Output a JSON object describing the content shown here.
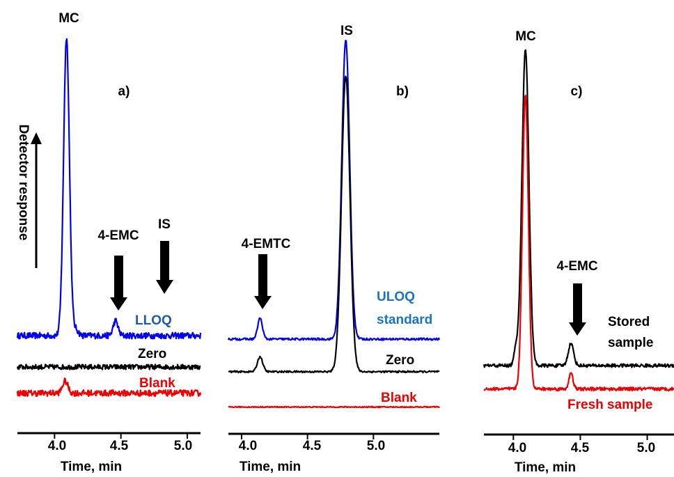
{
  "colors": {
    "blue": "#0000ee",
    "dark_blue": "#1f5aa8",
    "red": "#ee0000",
    "black": "#000000"
  },
  "y_axis_label": "Detector response",
  "chart_data": [
    {
      "type": "line",
      "panel_label": "a)",
      "xlabel": "Time, min",
      "ylabel": "Detector response",
      "xlim": [
        3.72,
        5.1
      ],
      "ticks": [
        "4.0",
        "4.5",
        "5.0"
      ],
      "tick_values": [
        4.0,
        4.5,
        5.0
      ],
      "series": [
        {
          "name": "LLOQ",
          "color": "blue",
          "baseline": 0.0,
          "noise": 0.035,
          "peaks": [
            {
              "x": 4.09,
              "height": 1.0,
              "width": 0.022
            },
            {
              "x": 4.46,
              "height": 0.05,
              "width": 0.018
            },
            {
              "x": 4.16,
              "height": 0.02,
              "width": 0.02
            }
          ]
        },
        {
          "name": "Zero",
          "color": "black",
          "baseline": -0.12,
          "noise": 0.028,
          "peaks": []
        },
        {
          "name": "Blank",
          "color": "red",
          "baseline": -0.22,
          "noise": 0.035,
          "peaks": [
            {
              "x": 4.08,
              "height": 0.04,
              "width": 0.02
            }
          ]
        }
      ],
      "annotations": [
        {
          "text": "MC",
          "x": 4.09,
          "arrow": false
        },
        {
          "text": "4-EMC",
          "x": 4.46,
          "arrow": true
        },
        {
          "text": "IS",
          "x": 4.82,
          "arrow": true
        }
      ]
    },
    {
      "type": "line",
      "panel_label": "b)",
      "xlabel": "Time, min",
      "ylabel": "",
      "xlim": [
        3.9,
        5.5
      ],
      "ticks": [
        "4.0",
        "4.5",
        "5.0"
      ],
      "tick_values": [
        4.0,
        4.5,
        5.0
      ],
      "series": [
        {
          "name": "ULOQ standard",
          "color": "blue",
          "baseline": 0.0,
          "noise": 0.012,
          "peaks": [
            {
              "x": 4.14,
              "height": 0.07,
              "width": 0.018
            },
            {
              "x": 4.79,
              "height": 1.0,
              "width": 0.03
            }
          ]
        },
        {
          "name": "Zero",
          "color": "black",
          "baseline": -0.12,
          "noise": 0.01,
          "peaks": [
            {
              "x": 4.14,
              "height": 0.05,
              "width": 0.02
            },
            {
              "x": 4.79,
              "height": 0.99,
              "width": 0.032
            }
          ]
        },
        {
          "name": "Blank",
          "color": "red",
          "baseline": -0.25,
          "noise": 0.006,
          "peaks": []
        }
      ],
      "annotations": [
        {
          "text": "IS",
          "x": 4.79,
          "arrow": false
        },
        {
          "text": "4-EMTC",
          "x": 4.13,
          "arrow": true
        }
      ]
    },
    {
      "type": "line",
      "panel_label": "c)",
      "xlabel": "Time, min",
      "ylabel": "",
      "xlim": [
        3.78,
        5.2
      ],
      "ticks": [
        "4.0",
        "4.5",
        "5.0"
      ],
      "tick_values": [
        4.0,
        4.5,
        5.0
      ],
      "series": [
        {
          "name": "Stored sample",
          "color": "black",
          "baseline": 0.0,
          "noise": 0.018,
          "peaks": [
            {
              "x": 4.09,
              "height": 1.0,
              "width": 0.026
            },
            {
              "x": 4.43,
              "height": 0.07,
              "width": 0.02
            },
            {
              "x": 4.02,
              "height": 0.05,
              "width": 0.015
            }
          ]
        },
        {
          "name": "Fresh sample",
          "color": "red",
          "baseline": -0.12,
          "noise": 0.018,
          "peaks": [
            {
              "x": 4.09,
              "height": 0.93,
              "width": 0.022
            },
            {
              "x": 4.43,
              "height": 0.05,
              "width": 0.015
            }
          ]
        }
      ],
      "annotations": [
        {
          "text": "MC",
          "x": 4.09,
          "arrow": false
        },
        {
          "text": "4-EMC",
          "x": 4.46,
          "arrow": true
        }
      ]
    }
  ]
}
